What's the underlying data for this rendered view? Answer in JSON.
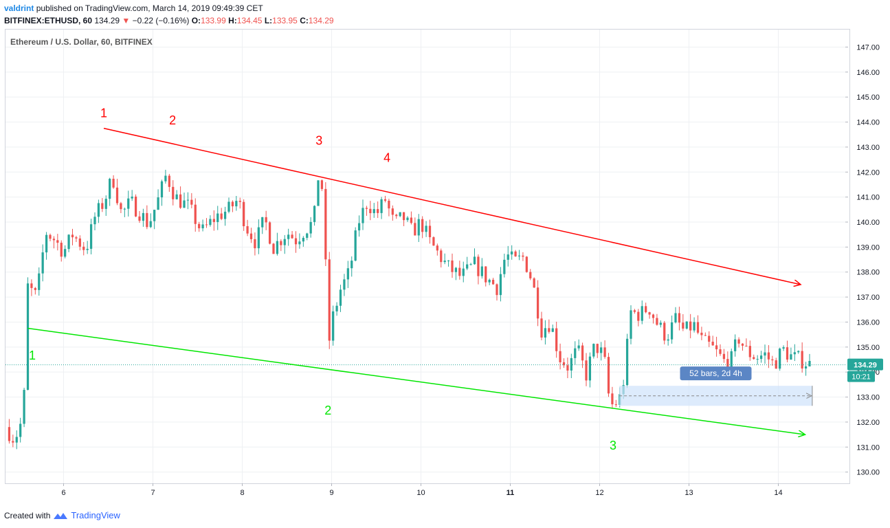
{
  "header": {
    "author": "valdrint",
    "published_text": "published on TradingView.com, March 14, 2019 09:49:39 CET",
    "symbol": "BITFINEX:ETHUSD, 60",
    "last": "134.29",
    "change": "−0.22 (−0.16%)",
    "o_label": "O:",
    "o": "133.99",
    "h_label": "H:",
    "h": "134.45",
    "l_label": "L:",
    "l": "133.95",
    "c_label": "C:",
    "c": "134.29"
  },
  "footer": {
    "created_with": "Created with",
    "brand": "TradingView"
  },
  "colors": {
    "up": "#26a69a",
    "down": "#ef5350",
    "resistance": "#ff0000",
    "support": "#00e600",
    "range": "#5b86c5"
  },
  "chart_data": {
    "type": "candlestick",
    "title": "Ethereum / U.S. Dollar, 60, BITFINEX",
    "x_ticks": [
      "6",
      "7",
      "8",
      "9",
      "10",
      "11",
      "12",
      "13",
      "14"
    ],
    "x_tick_values": [
      6,
      7,
      8,
      9,
      10,
      11,
      12,
      13,
      14
    ],
    "xlim": [
      5.35,
      14.75
    ],
    "y_ticks": [
      "147.00",
      "146.00",
      "145.00",
      "144.00",
      "143.00",
      "142.00",
      "141.00",
      "140.00",
      "139.00",
      "138.00",
      "137.00",
      "136.00",
      "135.00",
      "134.00",
      "133.00",
      "132.00",
      "131.00",
      "130.00"
    ],
    "ylim": [
      129.55,
      147.7
    ],
    "last_price": 134.29,
    "last_price_label": "134.29",
    "countdown": "10:21",
    "grid": true,
    "candle_path": [
      [
        5.35,
        131.8
      ],
      [
        5.45,
        131.3
      ],
      [
        5.55,
        132.2
      ],
      [
        5.6,
        137.4
      ],
      [
        5.7,
        137.0
      ],
      [
        5.8,
        139.6
      ],
      [
        5.9,
        139.3
      ],
      [
        6.0,
        138.8
      ],
      [
        6.1,
        139.5
      ],
      [
        6.25,
        138.9
      ],
      [
        6.35,
        140.2
      ],
      [
        6.45,
        140.8
      ],
      [
        6.55,
        141.8
      ],
      [
        6.65,
        140.3
      ],
      [
        6.75,
        140.8
      ],
      [
        6.85,
        140.4
      ],
      [
        6.95,
        139.9
      ],
      [
        7.05,
        140.8
      ],
      [
        7.15,
        141.9
      ],
      [
        7.25,
        141.0
      ],
      [
        7.4,
        140.6
      ],
      [
        7.55,
        139.6
      ],
      [
        7.7,
        140.2
      ],
      [
        7.85,
        140.5
      ],
      [
        7.95,
        140.9
      ],
      [
        8.05,
        139.8
      ],
      [
        8.15,
        139.2
      ],
      [
        8.25,
        140.1
      ],
      [
        8.35,
        139.0
      ],
      [
        8.5,
        139.6
      ],
      [
        8.6,
        139.3
      ],
      [
        8.7,
        139.7
      ],
      [
        8.8,
        140.0
      ],
      [
        8.85,
        141.8
      ],
      [
        8.92,
        141.1
      ],
      [
        8.95,
        134.6
      ],
      [
        9.0,
        136.0
      ],
      [
        9.1,
        137.3
      ],
      [
        9.2,
        138.0
      ],
      [
        9.3,
        140.0
      ],
      [
        9.4,
        140.8
      ],
      [
        9.5,
        140.3
      ],
      [
        9.6,
        140.9
      ],
      [
        9.7,
        139.9
      ],
      [
        9.8,
        140.2
      ],
      [
        9.9,
        139.6
      ],
      [
        10.0,
        140.0
      ],
      [
        10.1,
        139.2
      ],
      [
        10.2,
        138.7
      ],
      [
        10.3,
        138.2
      ],
      [
        10.45,
        137.8
      ],
      [
        10.6,
        138.3
      ],
      [
        10.75,
        137.7
      ],
      [
        10.85,
        137.4
      ],
      [
        10.95,
        138.7
      ],
      [
        11.05,
        138.4
      ],
      [
        11.15,
        138.6
      ],
      [
        11.25,
        137.6
      ],
      [
        11.35,
        135.7
      ],
      [
        11.45,
        136.0
      ],
      [
        11.55,
        134.6
      ],
      [
        11.65,
        134.2
      ],
      [
        11.75,
        134.9
      ],
      [
        11.85,
        133.9
      ],
      [
        11.95,
        135.1
      ],
      [
        12.05,
        134.6
      ],
      [
        12.1,
        133.1
      ],
      [
        12.15,
        132.6
      ],
      [
        12.25,
        133.1
      ],
      [
        12.35,
        136.4
      ],
      [
        12.45,
        136.3
      ],
      [
        12.55,
        136.6
      ],
      [
        12.65,
        135.9
      ],
      [
        12.75,
        135.4
      ],
      [
        12.85,
        136.1
      ],
      [
        12.95,
        135.6
      ],
      [
        13.05,
        135.9
      ],
      [
        13.15,
        135.2
      ],
      [
        13.25,
        135.0
      ],
      [
        13.35,
        134.6
      ],
      [
        13.45,
        134.2
      ],
      [
        13.55,
        135.4
      ],
      [
        13.65,
        134.8
      ],
      [
        13.75,
        134.6
      ],
      [
        13.85,
        134.7
      ],
      [
        13.95,
        134.3
      ],
      [
        14.05,
        134.9
      ],
      [
        14.15,
        134.6
      ],
      [
        14.25,
        134.5
      ],
      [
        14.35,
        134.3
      ]
    ],
    "resistance_line": {
      "from": [
        6.45,
        143.75
      ],
      "to": [
        14.25,
        137.5
      ]
    },
    "support_line": {
      "from": [
        5.6,
        135.75
      ],
      "to": [
        14.3,
        131.5
      ]
    },
    "resistance_touches": [
      {
        "label": "1",
        "x": 6.45,
        "y": 144.2
      },
      {
        "label": "2",
        "x": 7.22,
        "y": 143.9
      },
      {
        "label": "3",
        "x": 8.86,
        "y": 143.1
      },
      {
        "label": "4",
        "x": 9.62,
        "y": 142.4
      }
    ],
    "support_touches": [
      {
        "label": "1",
        "x": 5.65,
        "y": 134.5
      },
      {
        "label": "2",
        "x": 8.96,
        "y": 132.3
      },
      {
        "label": "3",
        "x": 12.15,
        "y": 130.9
      }
    ],
    "date_range": {
      "label": "52 bars, 2d 4h",
      "x_start": 12.22,
      "x_end": 14.38,
      "y_low": 132.65,
      "y_high": 133.45
    }
  }
}
